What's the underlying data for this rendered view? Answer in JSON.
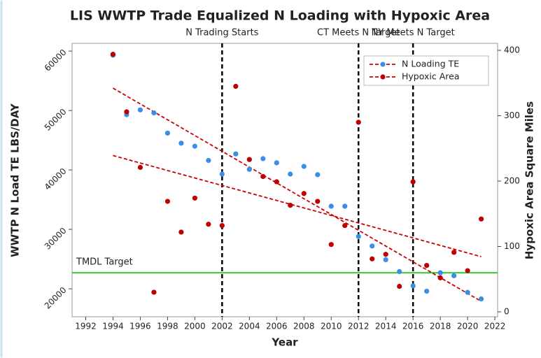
{
  "chart_data": {
    "type": "scatter",
    "title": "LIS WWTP Trade Equalized N Loading with Hypoxic Area",
    "x_label": "Year",
    "y_label": "WWTP N Load TE LBS/DAY",
    "y2_label": "Hypoxic Area Square Miles",
    "x": [
      1994,
      1995,
      1996,
      1997,
      1998,
      1999,
      2000,
      2001,
      2002,
      2003,
      2004,
      2005,
      2006,
      2007,
      2008,
      2009,
      2010,
      2011,
      2012,
      2013,
      2014,
      2015,
      2016,
      2017,
      2018,
      2019,
      2020,
      2021
    ],
    "series": [
      {
        "name": "N Loading TE",
        "color": "#3a8ee6",
        "trend_color": "#cc0000",
        "axis": "y",
        "trendline": true,
        "values": [
          59300,
          49300,
          50100,
          49600,
          46200,
          44500,
          44000,
          41600,
          39300,
          42700,
          40100,
          41900,
          41200,
          39300,
          40600,
          39200,
          33900,
          33900,
          28800,
          27200,
          24900,
          22900,
          20500,
          19600,
          22700,
          22200,
          19400,
          18300
        ]
      },
      {
        "name": "Hypoxic Area",
        "color": "#c00000",
        "trend_color": "#cc0000",
        "axis": "y2",
        "trendline": true,
        "values": [
          394,
          306,
          221,
          30,
          169,
          122,
          174,
          134,
          132,
          345,
          233,
          207,
          199,
          163,
          181,
          169,
          103,
          132,
          290,
          81,
          88,
          39,
          199,
          71,
          52,
          91,
          63,
          142
        ]
      }
    ],
    "xlim": [
      1991,
      2022.2
    ],
    "xticks": [
      1992,
      1994,
      1996,
      1998,
      2000,
      2002,
      2004,
      2006,
      2008,
      2010,
      2012,
      2014,
      2016,
      2018,
      2020,
      2022
    ],
    "ylim": [
      15300,
      61300
    ],
    "yticks": [
      20000,
      30000,
      40000,
      50000,
      60000
    ],
    "y2lim": [
      -7.5,
      410.7
    ],
    "y2ticks": [
      0,
      100,
      200,
      300,
      400
    ],
    "vlines": [
      {
        "x": 2002,
        "label": "N Trading Starts"
      },
      {
        "x": 2012,
        "label": "CT Meets N Target"
      },
      {
        "x": 2016,
        "label": "NY Meets N Target"
      }
    ],
    "hline": {
      "y": 22700,
      "label": "TMDL Target",
      "color": "#33cc33"
    },
    "legend": "top-right"
  }
}
